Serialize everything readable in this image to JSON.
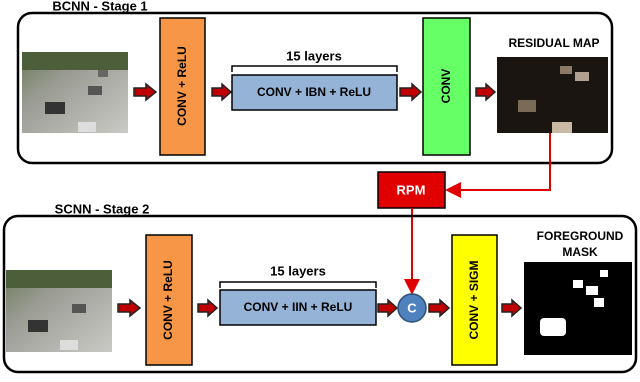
{
  "stage1": {
    "title": "BCNN - Stage 1",
    "block1": "CONV + ReLU",
    "layers": "15 layers",
    "block2": "CONV + IBN + ReLU",
    "block3": "CONV",
    "output": "RESIDUAL MAP"
  },
  "rpm": "RPM",
  "concat": "C",
  "stage2": {
    "title": "SCNN - Stage 2",
    "block1": "CONV + ReLU",
    "layers": "15 layers",
    "block2": "CONV + IIN + ReLU",
    "block3": "CONV + SIGM",
    "output": [
      "FOREGROUND",
      "MASK"
    ]
  }
}
